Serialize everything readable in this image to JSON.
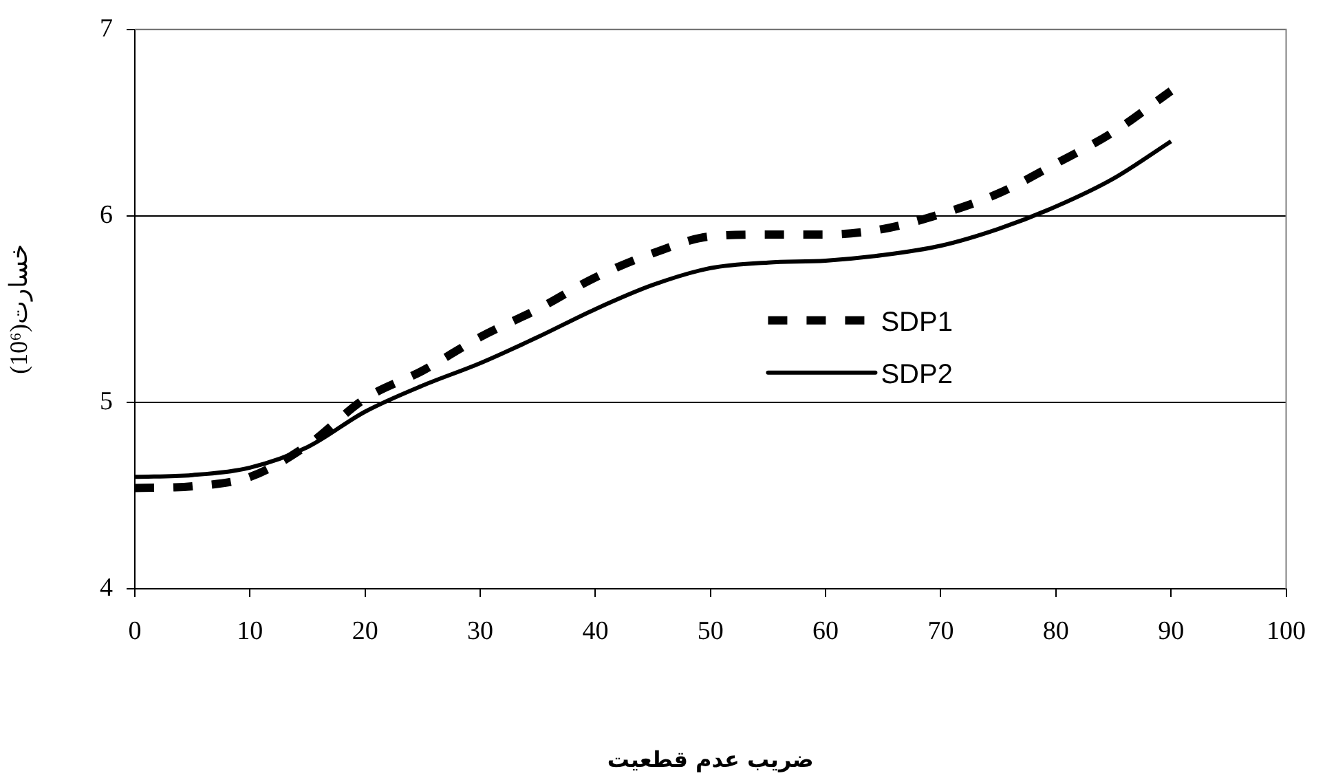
{
  "chart_data": {
    "type": "line",
    "xlabel": "ضریب عدم قطعیت",
    "ylabel": "خسارت(10⁶)",
    "x": [
      0,
      5,
      10,
      15,
      20,
      25,
      30,
      35,
      40,
      45,
      50,
      55,
      60,
      65,
      70,
      75,
      80,
      85,
      90
    ],
    "series": [
      {
        "name": "SDP1",
        "color": "#000000",
        "line_style": "dashed",
        "values": [
          4.54,
          4.55,
          4.6,
          4.77,
          5.02,
          5.17,
          5.35,
          5.5,
          5.67,
          5.8,
          5.89,
          5.9,
          5.9,
          5.93,
          6.01,
          6.12,
          6.28,
          6.45,
          6.67
        ]
      },
      {
        "name": "SDP2",
        "color": "#000000",
        "line_style": "solid",
        "values": [
          4.6,
          4.61,
          4.65,
          4.76,
          4.95,
          5.09,
          5.21,
          5.35,
          5.5,
          5.63,
          5.72,
          5.75,
          5.76,
          5.79,
          5.84,
          5.93,
          6.05,
          6.2,
          6.4
        ]
      }
    ],
    "xlim": [
      0,
      100
    ],
    "xticks": [
      0,
      10,
      20,
      30,
      40,
      50,
      60,
      70,
      80,
      90,
      100
    ],
    "ylim": [
      4,
      7
    ],
    "yticks": [
      4,
      5,
      6,
      7
    ],
    "grid": "y",
    "legend": "center right",
    "marker": "none"
  }
}
